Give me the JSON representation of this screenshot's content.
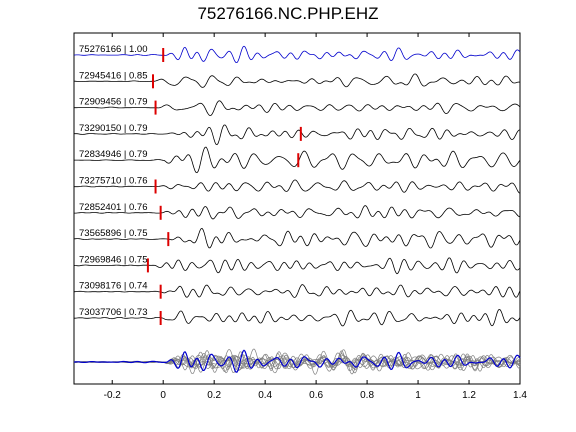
{
  "chart_data": {
    "type": "line",
    "title": "75276166.NC.PHP.EHZ",
    "xlabel": "",
    "ylabel": "",
    "xlim": [
      -0.35,
      1.4
    ],
    "x_ticks": [
      -0.2,
      0,
      0.2,
      0.4,
      0.6,
      0.8,
      1,
      1.2,
      1.4
    ],
    "x_tick_labels": [
      "-0.2",
      "0",
      "0.2",
      "0.4",
      "0.6",
      "0.8",
      "1",
      "1.2",
      "1.4"
    ],
    "grid": false,
    "series": [
      {
        "label": "75276166 | 1.00",
        "pick_time": 0.0,
        "color": "#0000cc"
      },
      {
        "label": "72945416 | 0.85",
        "pick_time": -0.04,
        "color": "#000000"
      },
      {
        "label": "72909456 | 0.79",
        "pick_time": -0.03,
        "color": "#000000"
      },
      {
        "label": "73290150 | 0.79",
        "pick_time": 0.54,
        "color": "#000000"
      },
      {
        "label": "72834946 | 0.79",
        "pick_time": 0.53,
        "color": "#000000"
      },
      {
        "label": "73275710 | 0.76",
        "pick_time": -0.03,
        "color": "#000000"
      },
      {
        "label": "72852401 | 0.76",
        "pick_time": -0.01,
        "color": "#000000"
      },
      {
        "label": "73565896 | 0.75",
        "pick_time": 0.02,
        "color": "#000000"
      },
      {
        "label": "72969846 | 0.75",
        "pick_time": -0.06,
        "color": "#000000"
      },
      {
        "label": "73098176 | 0.74",
        "pick_time": -0.01,
        "color": "#000000"
      },
      {
        "label": "73037706 | 0.73",
        "pick_time": -0.01,
        "color": "#000000"
      }
    ],
    "stack": {
      "reference_color": "#0000cc",
      "others_color": "#808080"
    },
    "pick_marker_color": "#dd0000"
  }
}
